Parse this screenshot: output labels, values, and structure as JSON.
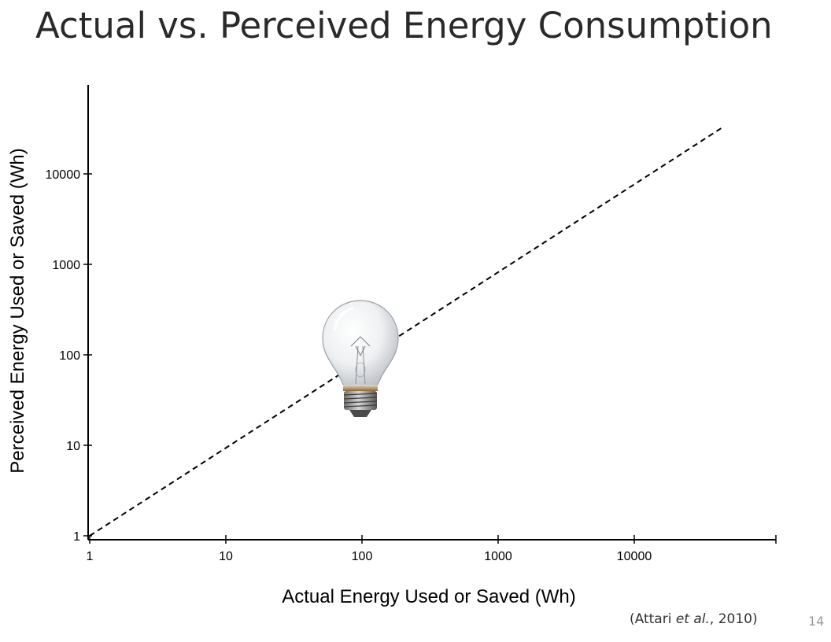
{
  "slide": {
    "title": "Actual vs. Perceived Energy Consumption",
    "citation_open": "(Attari ",
    "citation_italic": "et al.",
    "citation_close": ", 2010)",
    "page_number": "14"
  },
  "chart_data": {
    "type": "line",
    "title": "Actual vs. Perceived Energy Consumption",
    "xlabel": "Actual Energy Used or Saved (Wh)",
    "ylabel": "Perceived Energy Used or Saved (Wh)",
    "x_scale": "log",
    "y_scale": "log",
    "xlim": [
      1,
      100000
    ],
    "ylim": [
      1,
      100000
    ],
    "xticks": [
      "1",
      "10",
      "100",
      "1000",
      "10000"
    ],
    "yticks": [
      "1",
      "10",
      "100",
      "1000",
      "10000"
    ],
    "grid": false,
    "series": [
      {
        "style": "dashed",
        "x": [
          1,
          45000
        ],
        "y": [
          1,
          33000
        ]
      }
    ],
    "annotations": [
      {
        "type": "image",
        "icon": "light-bulb-icon",
        "x": 100,
        "y": 100
      }
    ]
  }
}
